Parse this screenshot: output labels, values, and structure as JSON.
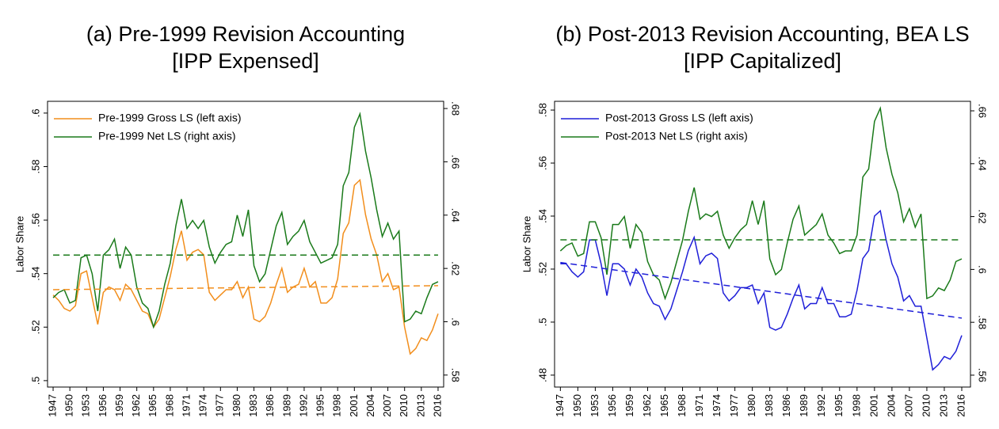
{
  "chart_data": [
    {
      "type": "line",
      "title": [
        "(a) Pre-1999 Revision Accounting",
        "[IPP Expensed]"
      ],
      "ylabel": "Labor Share",
      "x": [
        1947,
        1948,
        1949,
        1950,
        1951,
        1952,
        1953,
        1954,
        1955,
        1956,
        1957,
        1958,
        1959,
        1960,
        1961,
        1962,
        1963,
        1964,
        1965,
        1966,
        1967,
        1968,
        1969,
        1970,
        1971,
        1972,
        1973,
        1974,
        1975,
        1976,
        1977,
        1978,
        1979,
        1980,
        1981,
        1982,
        1983,
        1984,
        1985,
        1986,
        1987,
        1988,
        1989,
        1990,
        1991,
        1992,
        1993,
        1994,
        1995,
        1996,
        1997,
        1998,
        1999,
        2000,
        2001,
        2002,
        2003,
        2004,
        2005,
        2006,
        2007,
        2008,
        2009,
        2010,
        2011,
        2012,
        2013,
        2014,
        2015,
        2016
      ],
      "xlim": [
        1946,
        2017
      ],
      "xticks": [
        1947,
        1950,
        1953,
        1956,
        1959,
        1962,
        1965,
        1968,
        1971,
        1974,
        1977,
        1980,
        1983,
        1986,
        1989,
        1992,
        1995,
        1998,
        2001,
        2004,
        2007,
        2010,
        2013,
        2016
      ],
      "ylim": [
        0.4976,
        0.6044
      ],
      "yticks": [
        {
          "value": 0.5,
          "label": ".5"
        },
        {
          "value": 0.52,
          "label": ".52"
        },
        {
          "value": 0.54,
          "label": ".54"
        },
        {
          "value": 0.56,
          "label": ".56"
        },
        {
          "value": 0.58,
          "label": ".58"
        },
        {
          "value": 0.6,
          "label": ".6"
        }
      ],
      "y2lim": [
        0.5755,
        0.6827
      ],
      "y2ticks": [
        {
          "value": 0.58,
          "label": ".58"
        },
        {
          "value": 0.6,
          "label": ".6"
        },
        {
          "value": 0.62,
          "label": ".62"
        },
        {
          "value": 0.64,
          "label": ".64"
        },
        {
          "value": 0.66,
          "label": ".66"
        },
        {
          "value": 0.68,
          "label": ".68"
        }
      ],
      "series": [
        {
          "name": "Pre-1999 Gross LS (left axis)",
          "color": "#f28e1c",
          "values": [
            0.532,
            0.53,
            0.527,
            0.526,
            0.528,
            0.54,
            0.541,
            0.531,
            0.521,
            0.533,
            0.535,
            0.534,
            0.53,
            0.536,
            0.534,
            0.53,
            0.526,
            0.525,
            0.52,
            0.523,
            0.531,
            0.539,
            0.549,
            0.556,
            0.545,
            0.548,
            0.549,
            0.547,
            0.533,
            0.53,
            0.532,
            0.534,
            0.534,
            0.537,
            0.531,
            0.535,
            0.523,
            0.522,
            0.524,
            0.529,
            0.536,
            0.542,
            0.533,
            0.535,
            0.536,
            0.542,
            0.535,
            0.537,
            0.529,
            0.529,
            0.531,
            0.538,
            0.555,
            0.559,
            0.573,
            0.575,
            0.562,
            0.553,
            0.547,
            0.537,
            0.54,
            0.534,
            0.535,
            0.52,
            0.51,
            0.512,
            0.516,
            0.515,
            0.519,
            0.525
          ]
        },
        {
          "name": "Pre-1999 Net LS (right axis)",
          "color": "#1a7a1a",
          "axis": "y2",
          "values": [
            0.609,
            0.611,
            0.612,
            0.607,
            0.608,
            0.624,
            0.625,
            0.618,
            0.604,
            0.625,
            0.627,
            0.631,
            0.62,
            0.628,
            0.625,
            0.613,
            0.607,
            0.605,
            0.598,
            0.604,
            0.614,
            0.622,
            0.636,
            0.646,
            0.635,
            0.638,
            0.635,
            0.638,
            0.628,
            0.622,
            0.626,
            0.629,
            0.63,
            0.64,
            0.632,
            0.642,
            0.621,
            0.615,
            0.618,
            0.627,
            0.636,
            0.641,
            0.629,
            0.632,
            0.634,
            0.638,
            0.63,
            0.626,
            0.622,
            0.623,
            0.624,
            0.629,
            0.651,
            0.656,
            0.673,
            0.678,
            0.664,
            0.654,
            0.642,
            0.632,
            0.637,
            0.631,
            0.634,
            0.6,
            0.601,
            0.604,
            0.603,
            0.609,
            0.614,
            0.615
          ]
        },
        {
          "color": "#f28e1c",
          "dashed": true,
          "x": [
            1947,
            2016
          ],
          "values": [
            0.534,
            0.5355
          ]
        },
        {
          "color": "#1a7a1a",
          "dashed": true,
          "axis": "y2",
          "x": [
            1947,
            2016
          ],
          "values": [
            0.625,
            0.625
          ]
        }
      ],
      "legend": "top-left"
    },
    {
      "type": "line",
      "title": [
        "(b) Post-2013 Revision Accounting, BEA LS",
        "[IPP Capitalized]"
      ],
      "ylabel": "Labor Share",
      "x": [
        1947,
        1948,
        1949,
        1950,
        1951,
        1952,
        1953,
        1954,
        1955,
        1956,
        1957,
        1958,
        1959,
        1960,
        1961,
        1962,
        1963,
        1964,
        1965,
        1966,
        1967,
        1968,
        1969,
        1970,
        1971,
        1972,
        1973,
        1974,
        1975,
        1976,
        1977,
        1978,
        1979,
        1980,
        1981,
        1982,
        1983,
        1984,
        1985,
        1986,
        1987,
        1988,
        1989,
        1990,
        1991,
        1992,
        1993,
        1994,
        1995,
        1996,
        1997,
        1998,
        1999,
        2000,
        2001,
        2002,
        2003,
        2004,
        2005,
        2006,
        2007,
        2008,
        2009,
        2010,
        2011,
        2012,
        2013,
        2014,
        2015,
        2016
      ],
      "xlim": [
        1946,
        2017.5
      ],
      "xticks": [
        1947,
        1950,
        1953,
        1956,
        1959,
        1962,
        1965,
        1968,
        1971,
        1974,
        1977,
        1980,
        1983,
        1986,
        1989,
        1992,
        1995,
        1998,
        2001,
        2004,
        2007,
        2010,
        2013,
        2016
      ],
      "ylim": [
        0.4755,
        0.5833
      ],
      "yticks": [
        {
          "value": 0.48,
          "label": ".48"
        },
        {
          "value": 0.5,
          "label": ".5"
        },
        {
          "value": 0.52,
          "label": ".52"
        },
        {
          "value": 0.54,
          "label": ".54"
        },
        {
          "value": 0.56,
          "label": ".56"
        },
        {
          "value": 0.58,
          "label": ".58"
        }
      ],
      "y2lim": [
        0.5555,
        0.6636
      ],
      "y2ticks": [
        {
          "value": 0.56,
          "label": ".56"
        },
        {
          "value": 0.58,
          "label": ".58"
        },
        {
          "value": 0.6,
          "label": ".6"
        },
        {
          "value": 0.62,
          "label": ".62"
        },
        {
          "value": 0.64,
          "label": ".64"
        },
        {
          "value": 0.66,
          "label": ".66"
        }
      ],
      "series": [
        {
          "name": "Post-2013 Gross LS (left axis)",
          "color": "#1f1fd8",
          "values": [
            0.522,
            0.522,
            0.519,
            0.517,
            0.519,
            0.531,
            0.531,
            0.522,
            0.51,
            0.522,
            0.522,
            0.52,
            0.514,
            0.52,
            0.517,
            0.511,
            0.507,
            0.506,
            0.501,
            0.505,
            0.512,
            0.519,
            0.527,
            0.532,
            0.522,
            0.525,
            0.526,
            0.524,
            0.511,
            0.508,
            0.51,
            0.513,
            0.513,
            0.514,
            0.507,
            0.511,
            0.498,
            0.497,
            0.498,
            0.503,
            0.509,
            0.514,
            0.505,
            0.507,
            0.507,
            0.513,
            0.507,
            0.507,
            0.502,
            0.502,
            0.503,
            0.512,
            0.524,
            0.527,
            0.54,
            0.542,
            0.531,
            0.522,
            0.517,
            0.508,
            0.51,
            0.506,
            0.506,
            0.494,
            0.482,
            0.484,
            0.487,
            0.486,
            0.489,
            0.495
          ]
        },
        {
          "name": "Post-2013 Net LS (right axis)",
          "color": "#1a7a1a",
          "axis": "y2",
          "values": [
            0.607,
            0.609,
            0.61,
            0.605,
            0.606,
            0.618,
            0.618,
            0.612,
            0.598,
            0.617,
            0.617,
            0.62,
            0.608,
            0.617,
            0.614,
            0.603,
            0.598,
            0.596,
            0.589,
            0.595,
            0.603,
            0.611,
            0.622,
            0.631,
            0.619,
            0.621,
            0.62,
            0.622,
            0.613,
            0.608,
            0.612,
            0.615,
            0.617,
            0.626,
            0.617,
            0.626,
            0.604,
            0.598,
            0.6,
            0.61,
            0.619,
            0.624,
            0.613,
            0.615,
            0.617,
            0.621,
            0.613,
            0.61,
            0.606,
            0.607,
            0.607,
            0.613,
            0.635,
            0.638,
            0.656,
            0.661,
            0.646,
            0.636,
            0.629,
            0.618,
            0.623,
            0.616,
            0.621,
            0.589,
            0.59,
            0.593,
            0.592,
            0.596,
            0.603,
            0.604
          ]
        },
        {
          "color": "#1f1fd8",
          "dashed": true,
          "x": [
            1947,
            2016
          ],
          "values": [
            0.5225,
            0.5015
          ]
        },
        {
          "color": "#1a7a1a",
          "dashed": true,
          "axis": "y2",
          "x": [
            1947,
            2016
          ],
          "values": [
            0.6112,
            0.6112
          ]
        }
      ],
      "legend": "top-left"
    }
  ]
}
